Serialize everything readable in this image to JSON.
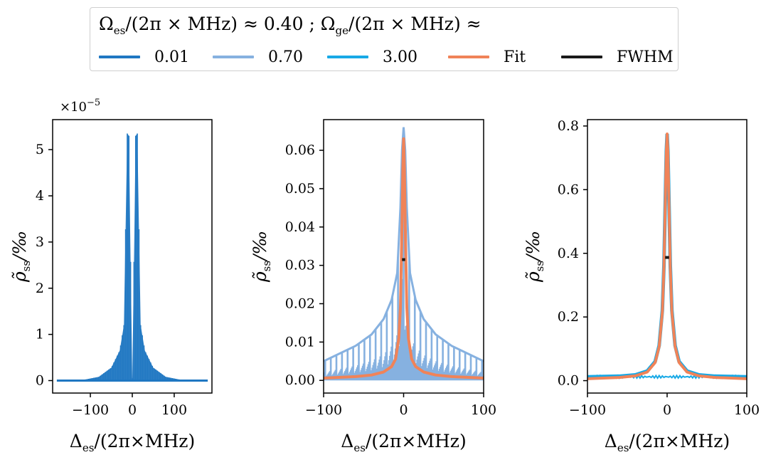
{
  "legend": {
    "title_left": "Ω",
    "title_left_sub": "es",
    "title_mid": "/(2π ×  MHz) ≈ 0.40  ;  Ω",
    "title_mid_sub": "ge",
    "title_right": "/(2π × MHz)  ≈",
    "items": [
      {
        "label": "0.01",
        "color": "#1f77c2"
      },
      {
        "label": "0.70",
        "color": "#86b1e0"
      },
      {
        "label": "3.00",
        "color": "#18a9e6"
      },
      {
        "label": "Fit",
        "color": "#f08358"
      },
      {
        "label": "FWHM",
        "color": "#1a1a1a"
      }
    ]
  },
  "chart_data": [
    {
      "type": "line",
      "xlabel": "Δes/(2π×MHz)",
      "ylabel": "ρ̃ss/‰",
      "offset_text": "×10−5",
      "xticks": [
        "−100",
        "0",
        "100"
      ],
      "yticks": [
        "0",
        "1",
        "2",
        "3",
        "4",
        "5"
      ],
      "xlim": [
        -190,
        190
      ],
      "ylim": [
        -0.27,
        5.65
      ],
      "series": [
        {
          "name": "0.01",
          "color": "#1f77c2",
          "x": [
            -180,
            -120,
            -80,
            -50,
            -30,
            -20,
            -12,
            -8,
            -5,
            0,
            5,
            8,
            12,
            20,
            30,
            50,
            80,
            120,
            180
          ],
          "y": [
            0.0,
            0.01,
            0.08,
            0.28,
            0.65,
            1.2,
            5.35,
            5.3,
            3.2,
            0.05,
            3.2,
            5.3,
            5.35,
            1.2,
            0.65,
            0.28,
            0.08,
            0.01,
            0.0
          ]
        }
      ]
    },
    {
      "type": "line",
      "xlabel": "Δes/(2π×MHz)",
      "ylabel": "ρ̃ss/‰",
      "xticks": [
        "−100",
        "0",
        "100"
      ],
      "yticks": [
        "0.00",
        "0.01",
        "0.02",
        "0.03",
        "0.04",
        "0.05",
        "0.06"
      ],
      "xlim": [
        -100,
        100
      ],
      "ylim": [
        -0.0033,
        0.068
      ],
      "series": [
        {
          "name": "0.70",
          "color": "#86b1e0",
          "x": [
            -100,
            -80,
            -60,
            -40,
            -25,
            -15,
            -8,
            -4,
            -2,
            0,
            2,
            4,
            8,
            15,
            25,
            40,
            60,
            80,
            100
          ],
          "y": [
            0.005,
            0.007,
            0.009,
            0.012,
            0.016,
            0.021,
            0.028,
            0.045,
            0.06,
            0.066,
            0.06,
            0.045,
            0.028,
            0.021,
            0.016,
            0.012,
            0.009,
            0.007,
            0.005
          ]
        },
        {
          "name": "Fit",
          "color": "#f08358",
          "x": [
            -100,
            -60,
            -40,
            -25,
            -15,
            -10,
            -6,
            -4,
            -2,
            -1,
            0,
            1,
            2,
            4,
            6,
            10,
            15,
            25,
            40,
            60,
            100
          ],
          "y": [
            0.0006,
            0.001,
            0.0014,
            0.0022,
            0.0036,
            0.0056,
            0.011,
            0.019,
            0.041,
            0.055,
            0.063,
            0.055,
            0.041,
            0.019,
            0.011,
            0.0056,
            0.0036,
            0.0022,
            0.0014,
            0.001,
            0.0006
          ]
        }
      ],
      "fwhm": {
        "x": [
          -2,
          2
        ],
        "y": 0.0315
      }
    },
    {
      "type": "line",
      "xlabel": "Δes/(2π×MHz)",
      "ylabel": "ρ̃ss/‰",
      "xticks": [
        "−100",
        "0",
        "100"
      ],
      "yticks": [
        "0.0",
        "0.2",
        "0.4",
        "0.6",
        "0.8"
      ],
      "xlim": [
        -100,
        100
      ],
      "ylim": [
        -0.039,
        0.82
      ],
      "series": [
        {
          "name": "3.00",
          "color": "#18a9e6",
          "x": [
            -100,
            -60,
            -40,
            -25,
            -15,
            -10,
            -6,
            -4,
            -2,
            -1,
            0,
            1,
            2,
            4,
            6,
            10,
            15,
            25,
            40,
            60,
            100
          ],
          "y": [
            0.012,
            0.014,
            0.018,
            0.03,
            0.06,
            0.11,
            0.22,
            0.36,
            0.6,
            0.72,
            0.775,
            0.72,
            0.6,
            0.36,
            0.22,
            0.11,
            0.06,
            0.03,
            0.018,
            0.014,
            0.012
          ]
        },
        {
          "name": "Fit",
          "color": "#f08358",
          "x": [
            -100,
            -60,
            -40,
            -25,
            -15,
            -10,
            -6,
            -4,
            -2,
            -1,
            0,
            1,
            2,
            4,
            6,
            10,
            15,
            25,
            40,
            60,
            100
          ],
          "y": [
            0.006,
            0.01,
            0.015,
            0.027,
            0.057,
            0.107,
            0.215,
            0.355,
            0.595,
            0.72,
            0.775,
            0.72,
            0.595,
            0.355,
            0.215,
            0.107,
            0.057,
            0.027,
            0.015,
            0.01,
            0.006
          ]
        }
      ],
      "fwhm": {
        "x": [
          -2.5,
          2.5
        ],
        "y": 0.387
      }
    }
  ]
}
